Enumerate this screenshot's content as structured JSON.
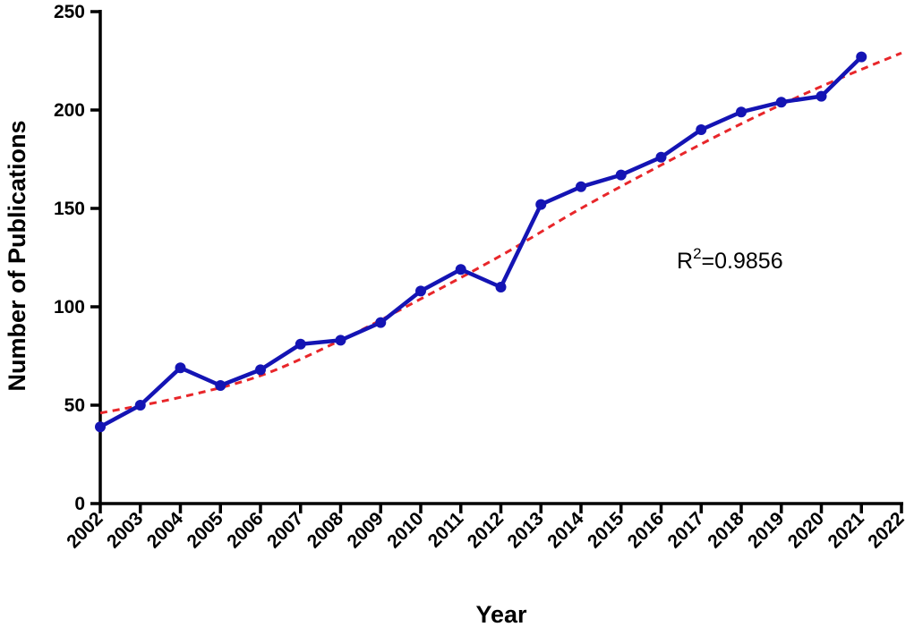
{
  "chart_data": {
    "type": "line",
    "xlabel": "Year",
    "ylabel": "Number of Publications",
    "xlim": [
      2002,
      2022
    ],
    "ylim": [
      0,
      250
    ],
    "x_ticks": [
      "2002",
      "2003",
      "2004",
      "2005",
      "2006",
      "2007",
      "2008",
      "2009",
      "2010",
      "2011",
      "2012",
      "2013",
      "2014",
      "2015",
      "2016",
      "2017",
      "2018",
      "2019",
      "2020",
      "2021",
      "2022"
    ],
    "y_ticks": [
      "0",
      "50",
      "100",
      "150",
      "200",
      "250"
    ],
    "grid": false,
    "series": [
      {
        "style": "solid-line-with-markers",
        "color": "#1414b4",
        "x": [
          2002,
          2003,
          2004,
          2005,
          2006,
          2007,
          2008,
          2009,
          2010,
          2011,
          2012,
          2013,
          2014,
          2015,
          2016,
          2017,
          2018,
          2019,
          2020,
          2021
        ],
        "values": [
          39,
          50,
          69,
          60,
          68,
          81,
          83,
          92,
          108,
          119,
          110,
          152,
          161,
          167,
          176,
          190,
          199,
          204,
          207,
          227
        ]
      },
      {
        "style": "dashed-trend",
        "color": "#e8262a",
        "x": [
          2002,
          2004,
          2006,
          2008,
          2010,
          2012,
          2014,
          2016,
          2018,
          2020,
          2022
        ],
        "values": [
          46,
          54,
          65,
          83,
          104,
          126,
          150,
          172,
          193,
          212,
          229
        ]
      }
    ],
    "annotation": {
      "base": "R",
      "superscript": "2",
      "rest": "=0.9856"
    }
  }
}
